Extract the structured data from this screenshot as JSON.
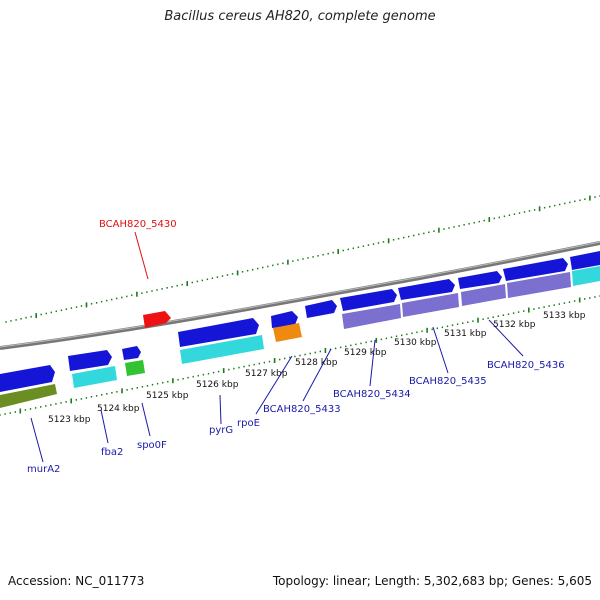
{
  "title": "Bacillus cereus AH820, complete genome",
  "footer": {
    "accession": "Accession: NC_011773",
    "summary": "Topology: linear; Length: 5,302,683 bp; Genes: 5,605"
  },
  "colors": {
    "backbone": "#888888",
    "tick": "#1d7a1d",
    "label_blue": "#1a1aa8",
    "label_red": "#dd1111",
    "gene_blue": "#1515d8",
    "gene_cyan": "#33d8dd",
    "gene_green": "#33c233",
    "gene_olive": "#6b8e23",
    "gene_orange": "#ef8a10",
    "gene_purple": "#7b6fcf",
    "gene_red": "#ee1111"
  },
  "scale_labels": [
    "5123 kbp",
    "5124 kbp",
    "5125 kbp",
    "5126 kbp",
    "5127 kbp",
    "5128 kbp",
    "5129 kbp",
    "5130 kbp",
    "5131 kbp",
    "5132 kbp",
    "5133 kbp"
  ],
  "gene_labels": {
    "murA2": "murA2",
    "fba2": "fba2",
    "spo0F": "spo0F",
    "pyrG": "pyrG",
    "rpoE": "rpoE",
    "BCAH820_5430": "BCAH820_5430",
    "BCAH820_5433": "BCAH820_5433",
    "BCAH820_5434": "BCAH820_5434",
    "BCAH820_5435": "BCAH820_5435",
    "BCAH820_5436": "BCAH820_5436"
  }
}
